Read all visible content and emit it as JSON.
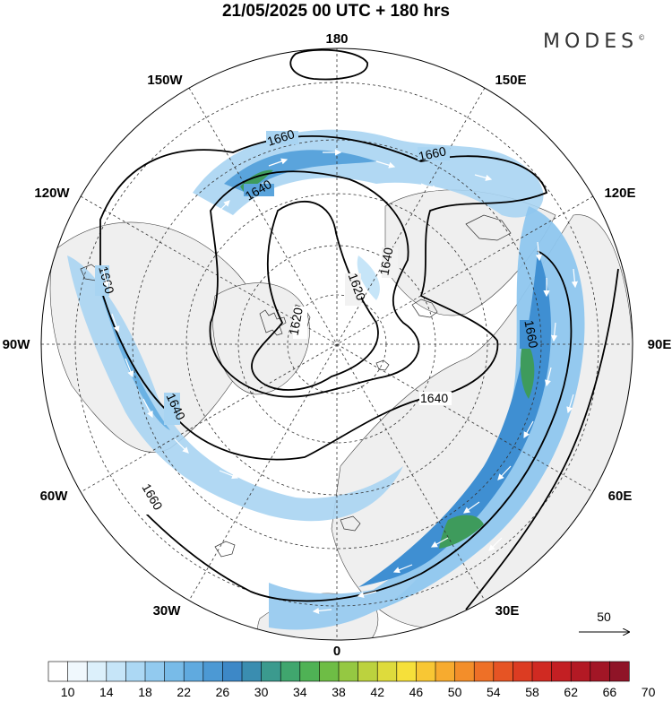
{
  "header": {
    "title": "21/05/2025  00 UTC  + 180 hrs",
    "logo": "MODES",
    "logo_mark": "©"
  },
  "map": {
    "projection": "north-polar-stereographic",
    "meridian_labels": [
      "180",
      "150E",
      "120E",
      "90E",
      "60E",
      "30E",
      "0",
      "30W",
      "60W",
      "90W",
      "120W",
      "150W"
    ],
    "contour_labels": [
      "1660",
      "1660",
      "1640",
      "1640",
      "1620",
      "1620",
      "1640",
      "1640",
      "1660",
      "1660",
      "1660"
    ],
    "wind_reference_value": "50"
  },
  "colorbar": {
    "tick_labels": [
      "10",
      "14",
      "18",
      "22",
      "26",
      "30",
      "34",
      "38",
      "42",
      "46",
      "50",
      "54",
      "58",
      "62",
      "66",
      "70"
    ],
    "colors": [
      "#ffffff",
      "#f0f8fd",
      "#dcf0fb",
      "#c6e5f8",
      "#acd8f4",
      "#92caef",
      "#78bbe8",
      "#60aadf",
      "#4c99d4",
      "#3d88c7",
      "#3a8db0",
      "#3b9a8e",
      "#40a66e",
      "#4fb255",
      "#6ebd45",
      "#95c842",
      "#bcd23e",
      "#dedb3c",
      "#f6e03a",
      "#f8c734",
      "#f7ab2f",
      "#f38e2a",
      "#ee7027",
      "#e65424",
      "#dc3c22",
      "#d02a22",
      "#c31f23",
      "#b31924",
      "#a21626",
      "#8f1427"
    ],
    "accent_jet": "#2f7fcf",
    "accent_max": "#3e9b5c",
    "land_fill": "#f2f2f2"
  }
}
